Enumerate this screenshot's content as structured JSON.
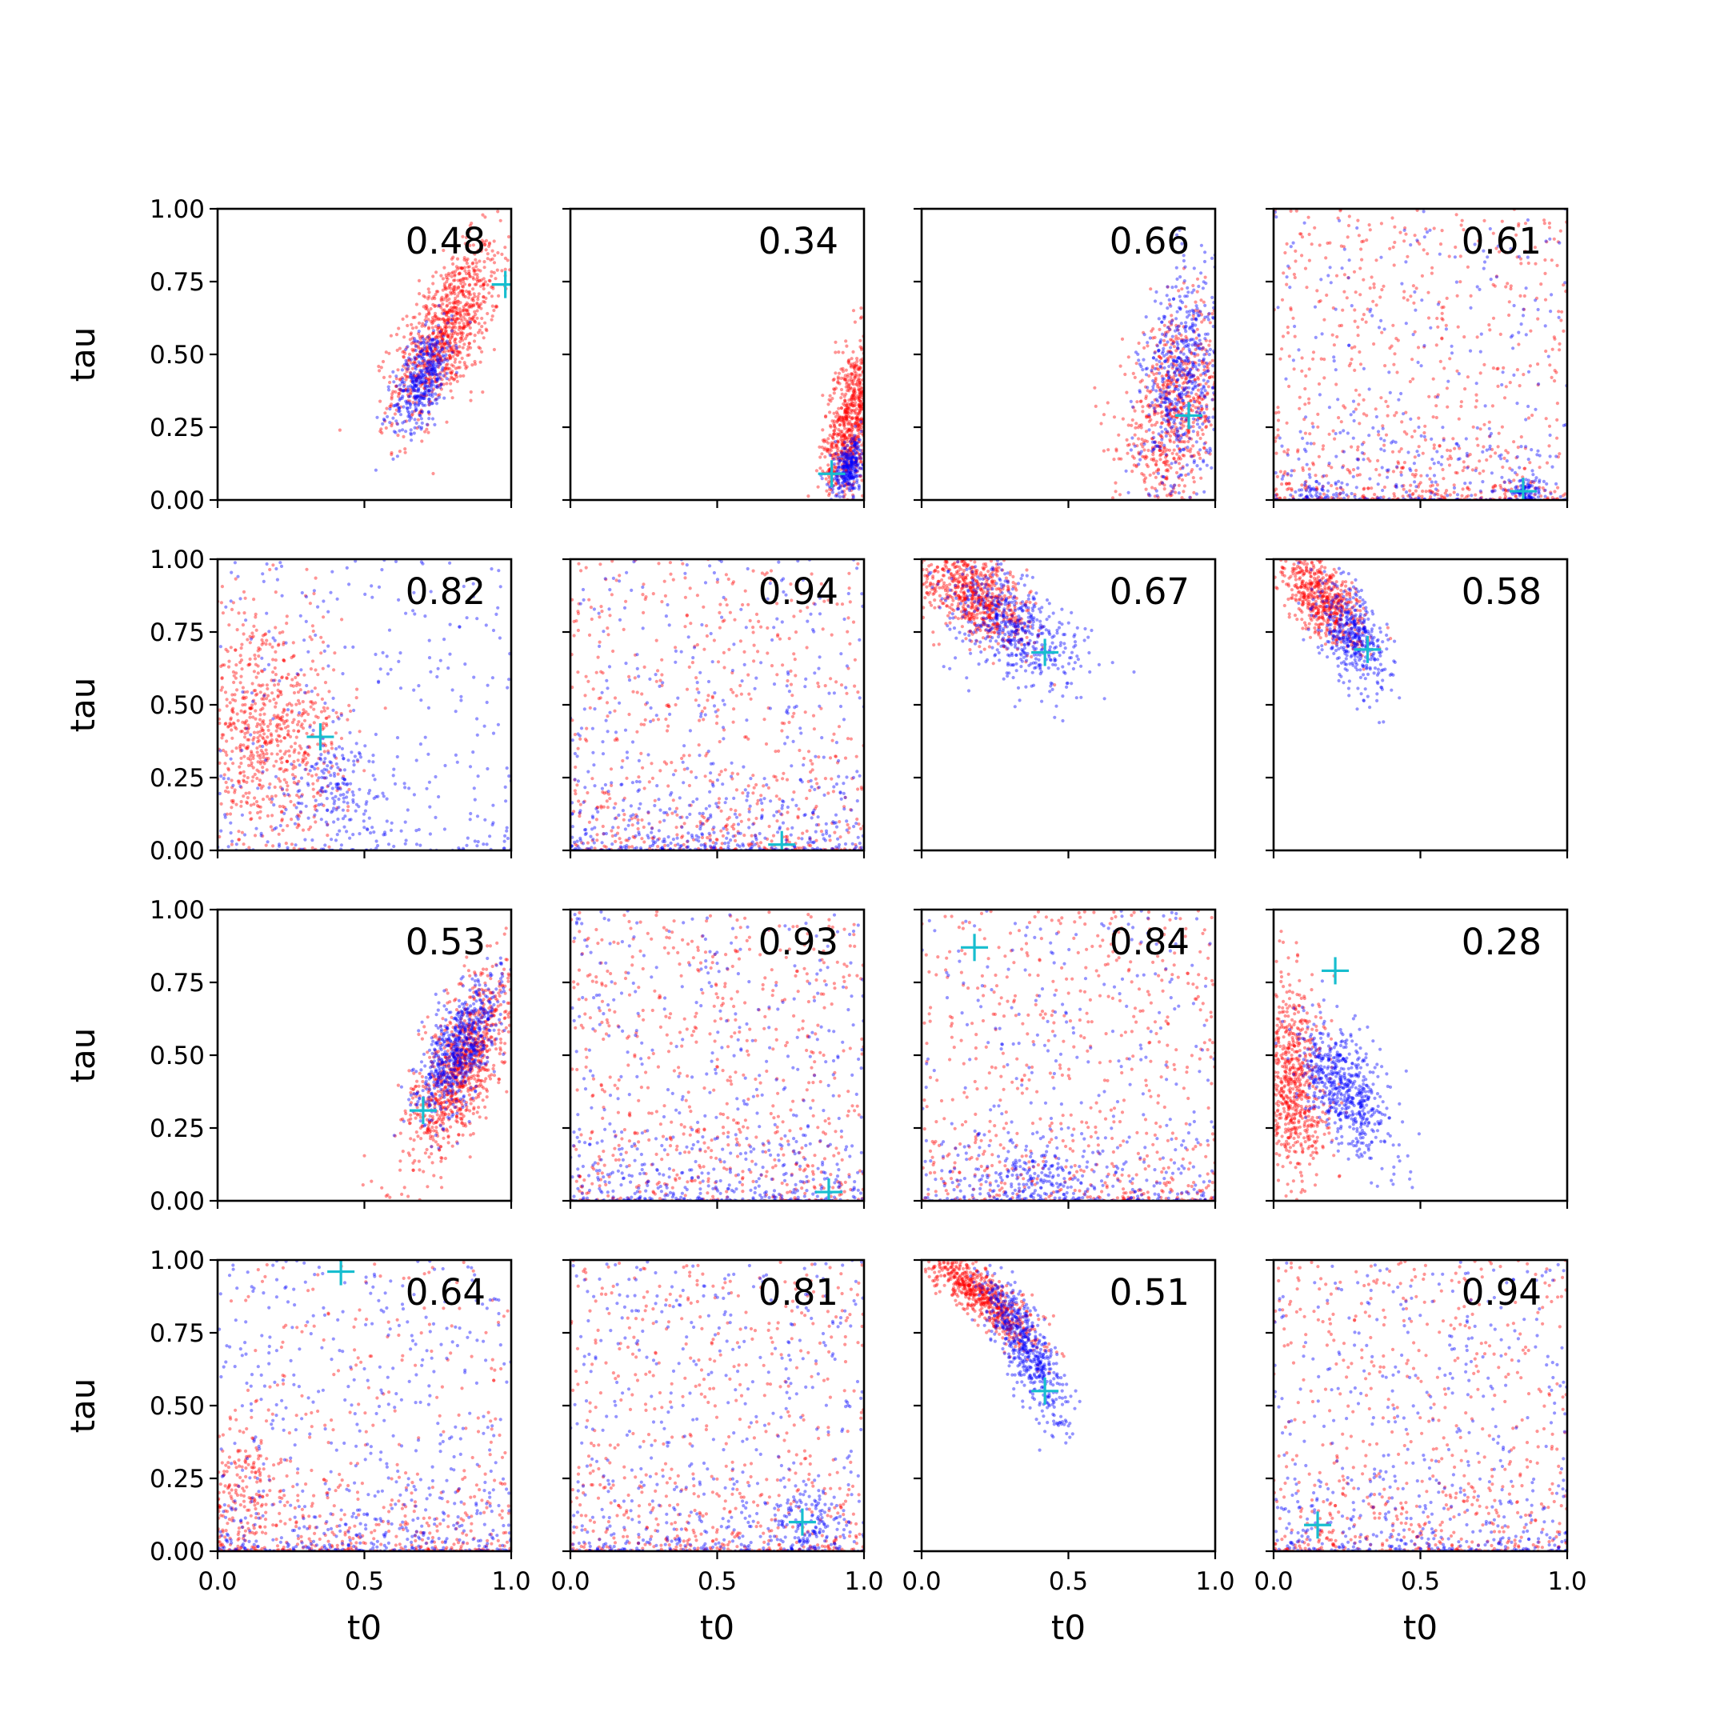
{
  "chart_data": {
    "type": "scatter",
    "layout": {
      "rows": 4,
      "cols": 4
    },
    "xlabel": "t0",
    "ylabel": "tau",
    "xlim": [
      0.0,
      1.0
    ],
    "ylim": [
      0.0,
      1.0
    ],
    "xticks": [
      "0.0",
      "0.5",
      "1.0"
    ],
    "yticks": [
      "0.00",
      "0.25",
      "0.50",
      "0.75",
      "1.00"
    ],
    "grid": false,
    "colors": {
      "series_a": "#ff0000",
      "series_b": "#0000ff",
      "marker": "#17becf"
    },
    "panels": [
      {
        "value": "0.48",
        "marker": [
          0.98,
          0.74
        ],
        "red": {
          "shape": "cluster",
          "cx": 0.78,
          "cy": 0.58,
          "sx": 0.09,
          "sy": 0.15,
          "rho": 0.65,
          "n": 950
        },
        "blue": {
          "shape": "cluster",
          "cx": 0.7,
          "cy": 0.42,
          "sx": 0.05,
          "sy": 0.09,
          "rho": 0.55,
          "n": 420
        }
      },
      {
        "value": "0.34",
        "marker": [
          0.89,
          0.09
        ],
        "red": {
          "shape": "cluster",
          "cx": 0.96,
          "cy": 0.27,
          "sx": 0.05,
          "sy": 0.15,
          "rho": 0.5,
          "n": 650
        },
        "blue": {
          "shape": "cluster",
          "cx": 0.95,
          "cy": 0.11,
          "sx": 0.03,
          "sy": 0.05,
          "rho": 0.3,
          "n": 280
        }
      },
      {
        "value": "0.66",
        "marker": [
          0.91,
          0.29
        ],
        "red": {
          "shape": "cluster",
          "cx": 0.86,
          "cy": 0.3,
          "sx": 0.09,
          "sy": 0.17,
          "rho": 0.35,
          "n": 650
        },
        "blue": {
          "shape": "cluster",
          "cx": 0.89,
          "cy": 0.42,
          "sx": 0.07,
          "sy": 0.2,
          "rho": 0.3,
          "n": 520
        }
      },
      {
        "value": "0.61",
        "marker": [
          0.85,
          0.03
        ],
        "red": {
          "shape": "uniform",
          "n": 720,
          "bottom": 0.35
        },
        "blue": {
          "shape": "uniform",
          "n": 380,
          "bottom": 0.45,
          "clusters": [
            [
              0.86,
              0.03,
              0.03,
              0.02,
              90
            ],
            [
              0.15,
              0.03,
              0.06,
              0.02,
              40
            ]
          ]
        }
      },
      {
        "value": "0.82",
        "marker": [
          0.35,
          0.39
        ],
        "red": {
          "shape": "cluster",
          "cx": 0.16,
          "cy": 0.4,
          "sx": 0.14,
          "sy": 0.22,
          "rho": -0.2,
          "n": 700
        },
        "blue": {
          "shape": "uniform",
          "n": 360,
          "bottom": 0.3,
          "clusters": [
            [
              0.4,
              0.22,
              0.08,
              0.08,
              130
            ]
          ]
        }
      },
      {
        "value": "0.94",
        "marker": [
          0.72,
          0.02
        ],
        "red": {
          "shape": "uniform",
          "n": 620,
          "bottom": 0.3
        },
        "blue": {
          "shape": "uniform",
          "n": 600,
          "bottom": 0.55
        }
      },
      {
        "value": "0.67",
        "marker": [
          0.42,
          0.68
        ],
        "red": {
          "shape": "cluster",
          "cx": 0.18,
          "cy": 0.88,
          "sx": 0.1,
          "sy": 0.09,
          "rho": -0.55,
          "n": 650
        },
        "blue": {
          "shape": "cluster",
          "cx": 0.3,
          "cy": 0.78,
          "sx": 0.11,
          "sy": 0.11,
          "rho": -0.5,
          "n": 520
        }
      },
      {
        "value": "0.58",
        "marker": [
          0.32,
          0.69
        ],
        "red": {
          "shape": "cluster",
          "cx": 0.17,
          "cy": 0.86,
          "sx": 0.07,
          "sy": 0.08,
          "rho": -0.6,
          "n": 560
        },
        "blue": {
          "shape": "cluster",
          "cx": 0.27,
          "cy": 0.74,
          "sx": 0.06,
          "sy": 0.09,
          "rho": -0.5,
          "n": 420
        }
      },
      {
        "value": "0.53",
        "marker": [
          0.7,
          0.31
        ],
        "red": {
          "shape": "cluster",
          "cx": 0.83,
          "cy": 0.47,
          "sx": 0.09,
          "sy": 0.16,
          "rho": 0.7,
          "n": 950
        },
        "blue": {
          "shape": "cluster",
          "cx": 0.82,
          "cy": 0.52,
          "sx": 0.07,
          "sy": 0.12,
          "rho": 0.65,
          "n": 650
        }
      },
      {
        "value": "0.93",
        "marker": [
          0.88,
          0.03
        ],
        "red": {
          "shape": "uniform",
          "n": 650,
          "bottom": 0.25
        },
        "blue": {
          "shape": "uniform",
          "n": 600,
          "bottom": 0.5
        }
      },
      {
        "value": "0.84",
        "marker": [
          0.18,
          0.87
        ],
        "red": {
          "shape": "uniform",
          "n": 650,
          "bottom": 0.3
        },
        "blue": {
          "shape": "uniform",
          "n": 480,
          "bottom": 0.55,
          "clusters": [
            [
              0.38,
              0.07,
              0.08,
              0.05,
              110
            ]
          ]
        }
      },
      {
        "value": "0.28",
        "marker": [
          0.21,
          0.79
        ],
        "red": {
          "shape": "cluster",
          "cx": 0.06,
          "cy": 0.42,
          "sx": 0.06,
          "sy": 0.17,
          "rho": -0.2,
          "n": 620
        },
        "blue": {
          "shape": "cluster",
          "cx": 0.24,
          "cy": 0.38,
          "sx": 0.08,
          "sy": 0.12,
          "rho": -0.6,
          "n": 600
        }
      },
      {
        "value": "0.64",
        "marker": [
          0.42,
          0.96
        ],
        "red": {
          "shape": "uniform",
          "n": 520,
          "bottom": 0.6,
          "clusters": [
            [
              0.08,
              0.22,
              0.08,
              0.12,
              160
            ]
          ]
        },
        "blue": {
          "shape": "uniform",
          "n": 620,
          "bottom": 0.5
        }
      },
      {
        "value": "0.81",
        "marker": [
          0.79,
          0.1
        ],
        "red": {
          "shape": "uniform",
          "n": 640,
          "bottom": 0.4
        },
        "blue": {
          "shape": "uniform",
          "n": 540,
          "bottom": 0.4,
          "clusters": [
            [
              0.79,
              0.1,
              0.06,
              0.06,
              110
            ]
          ]
        }
      },
      {
        "value": "0.51",
        "marker": [
          0.42,
          0.55
        ],
        "red": {
          "shape": "cluster",
          "cx": 0.2,
          "cy": 0.88,
          "sx": 0.1,
          "sy": 0.09,
          "rho": -0.85,
          "n": 650
        },
        "blue": {
          "shape": "cluster",
          "cx": 0.35,
          "cy": 0.7,
          "sx": 0.07,
          "sy": 0.13,
          "rho": -0.8,
          "n": 560
        }
      },
      {
        "value": "0.94",
        "marker": [
          0.15,
          0.09
        ],
        "red": {
          "shape": "uniform",
          "n": 650,
          "bottom": 0.35
        },
        "blue": {
          "shape": "uniform",
          "n": 560,
          "bottom": 0.4
        }
      }
    ]
  }
}
